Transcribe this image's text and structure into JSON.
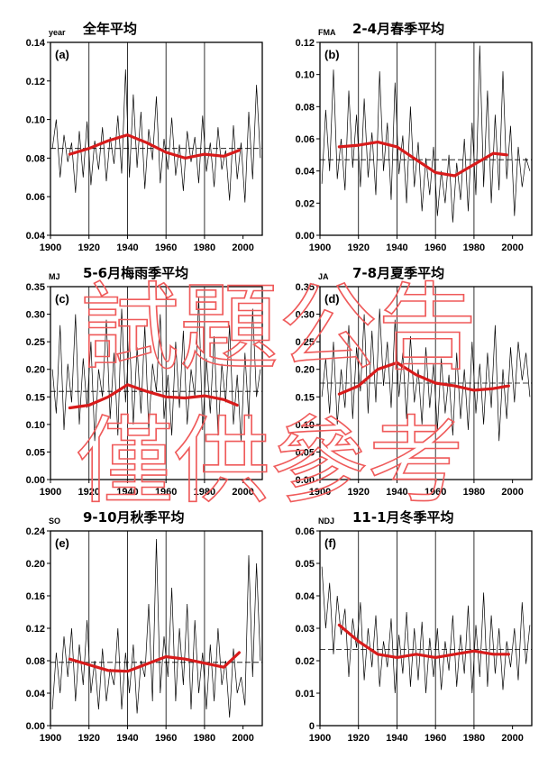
{
  "figure": {
    "watermark": [
      "試題公告",
      "僅供參考"
    ],
    "colors": {
      "trend": "#d81b1b",
      "series": "#000000",
      "watermark": "#ef5a5a"
    }
  },
  "chart_data": [
    {
      "type": "line",
      "label": "(a)",
      "season": "year",
      "title": "全年平均",
      "xlim": [
        1900,
        2010
      ],
      "ylim": [
        0.04,
        0.14
      ],
      "yticks": [
        "0.04",
        "0.06",
        "0.08",
        "0.10",
        "0.12",
        "0.14"
      ],
      "xticks": [
        "1900",
        "1920",
        "1940",
        "1960",
        "1980",
        "2000"
      ],
      "reference_line": 0.085,
      "grid_x": [
        1920,
        1940,
        1960,
        1980
      ],
      "series": [
        {
          "x": [
            1901,
            1903,
            1905,
            1907,
            1909,
            1911,
            1913,
            1915,
            1917,
            1919,
            1921,
            1923,
            1925,
            1927,
            1929,
            1931,
            1933,
            1935,
            1937,
            1939,
            1941,
            1943,
            1945,
            1947,
            1949,
            1951,
            1953,
            1955,
            1957,
            1959,
            1961,
            1963,
            1965,
            1967,
            1969,
            1971,
            1973,
            1975,
            1977,
            1979,
            1981,
            1983,
            1985,
            1987,
            1989,
            1991,
            1993,
            1995,
            1997,
            1999,
            2001,
            2003,
            2005,
            2007,
            2009
          ],
          "values": [
            0.085,
            0.1,
            0.07,
            0.092,
            0.078,
            0.088,
            0.062,
            0.094,
            0.07,
            0.099,
            0.066,
            0.089,
            0.074,
            0.096,
            0.068,
            0.091,
            0.077,
            0.102,
            0.072,
            0.126,
            0.07,
            0.113,
            0.075,
            0.104,
            0.064,
            0.095,
            0.079,
            0.112,
            0.067,
            0.09,
            0.074,
            0.101,
            0.071,
            0.087,
            0.063,
            0.094,
            0.078,
            0.091,
            0.067,
            0.102,
            0.073,
            0.088,
            0.065,
            0.096,
            0.074,
            0.084,
            0.058,
            0.097,
            0.069,
            0.088,
            0.057,
            0.104,
            0.069,
            0.118,
            0.08
          ]
        },
        {
          "x": [
            1910,
            1920,
            1930,
            1940,
            1950,
            1960,
            1970,
            1980,
            1990,
            1998
          ],
          "values": [
            0.082,
            0.085,
            0.089,
            0.092,
            0.088,
            0.083,
            0.08,
            0.082,
            0.081,
            0.084
          ]
        }
      ]
    },
    {
      "type": "line",
      "label": "(b)",
      "season": "FMA",
      "title": "2-4月春季平均",
      "xlim": [
        1900,
        2010
      ],
      "ylim": [
        0.0,
        0.12
      ],
      "yticks": [
        "0.00",
        "0.02",
        "0.04",
        "0.06",
        "0.08",
        "0.10",
        "0.12"
      ],
      "xticks": [
        "1900",
        "1920",
        "1940",
        "1960",
        "1980",
        "2000"
      ],
      "reference_line": 0.047,
      "grid_x": [
        1920,
        1940,
        1960,
        1980
      ],
      "series": [
        {
          "x": [
            1901,
            1903,
            1905,
            1907,
            1909,
            1911,
            1913,
            1915,
            1917,
            1919,
            1921,
            1923,
            1925,
            1927,
            1929,
            1931,
            1933,
            1935,
            1937,
            1939,
            1941,
            1943,
            1945,
            1947,
            1949,
            1951,
            1953,
            1955,
            1957,
            1959,
            1961,
            1963,
            1965,
            1967,
            1969,
            1971,
            1973,
            1975,
            1977,
            1979,
            1981,
            1983,
            1985,
            1987,
            1989,
            1991,
            1993,
            1995,
            1997,
            1999,
            2001,
            2003,
            2005,
            2007,
            2009
          ],
          "values": [
            0.032,
            0.078,
            0.04,
            0.103,
            0.035,
            0.06,
            0.028,
            0.09,
            0.042,
            0.075,
            0.03,
            0.085,
            0.036,
            0.064,
            0.025,
            0.102,
            0.04,
            0.07,
            0.022,
            0.095,
            0.038,
            0.062,
            0.02,
            0.08,
            0.03,
            0.058,
            0.015,
            0.048,
            0.025,
            0.055,
            0.012,
            0.04,
            0.02,
            0.05,
            0.008,
            0.045,
            0.022,
            0.06,
            0.015,
            0.07,
            0.025,
            0.118,
            0.03,
            0.09,
            0.02,
            0.075,
            0.028,
            0.102,
            0.035,
            0.068,
            0.012,
            0.055,
            0.03,
            0.048,
            0.04
          ]
        },
        {
          "x": [
            1910,
            1920,
            1930,
            1940,
            1950,
            1960,
            1970,
            1980,
            1990,
            1997
          ],
          "values": [
            0.055,
            0.056,
            0.058,
            0.055,
            0.047,
            0.039,
            0.037,
            0.044,
            0.051,
            0.05
          ]
        }
      ]
    },
    {
      "type": "line",
      "label": "(c)",
      "season": "MJ",
      "title": "5-6月梅雨季平均",
      "xlim": [
        1900,
        2010
      ],
      "ylim": [
        0.0,
        0.35
      ],
      "yticks": [
        "0.00",
        "0.05",
        "0.10",
        "0.15",
        "0.20",
        "0.25",
        "0.30",
        "0.35"
      ],
      "xticks": [
        "1900",
        "1920",
        "1940",
        "1960",
        "1980",
        "2000"
      ],
      "reference_line": 0.16,
      "grid_x": [
        1920,
        1940,
        1960,
        1980
      ],
      "series": [
        {
          "x": [
            1901,
            1903,
            1905,
            1907,
            1909,
            1911,
            1913,
            1915,
            1917,
            1919,
            1921,
            1923,
            1925,
            1927,
            1929,
            1931,
            1933,
            1935,
            1937,
            1939,
            1941,
            1943,
            1945,
            1947,
            1949,
            1951,
            1953,
            1955,
            1957,
            1959,
            1961,
            1963,
            1965,
            1967,
            1969,
            1971,
            1973,
            1975,
            1977,
            1979,
            1981,
            1983,
            1985,
            1987,
            1989,
            1991,
            1993,
            1995,
            1997,
            1999,
            2001,
            2003,
            2005,
            2007,
            2009
          ],
          "values": [
            0.2,
            0.12,
            0.28,
            0.09,
            0.21,
            0.14,
            0.3,
            0.1,
            0.22,
            0.13,
            0.25,
            0.07,
            0.2,
            0.15,
            0.29,
            0.11,
            0.23,
            0.08,
            0.31,
            0.14,
            0.26,
            0.1,
            0.24,
            0.12,
            0.28,
            0.09,
            0.21,
            0.16,
            0.3,
            0.11,
            0.19,
            0.08,
            0.25,
            0.13,
            0.27,
            0.1,
            0.2,
            0.15,
            0.33,
            0.09,
            0.22,
            0.12,
            0.26,
            0.08,
            0.21,
            0.14,
            0.28,
            0.1,
            0.19,
            0.07,
            0.23,
            0.11,
            0.31,
            0.15,
            0.2
          ]
        },
        {
          "x": [
            1910,
            1920,
            1930,
            1940,
            1950,
            1960,
            1970,
            1980,
            1990,
            1997
          ],
          "values": [
            0.13,
            0.135,
            0.15,
            0.172,
            0.16,
            0.15,
            0.148,
            0.152,
            0.145,
            0.135
          ]
        }
      ]
    },
    {
      "type": "line",
      "label": "(d)",
      "season": "JA",
      "title": "7-8月夏季平均",
      "xlim": [
        1900,
        2010
      ],
      "ylim": [
        0.0,
        0.35
      ],
      "yticks": [
        "0.00",
        "0.05",
        "0.10",
        "0.15",
        "0.20",
        "0.25",
        "0.30",
        "0.35"
      ],
      "xticks": [
        "1900",
        "1920",
        "1940",
        "1960",
        "1980",
        "2000"
      ],
      "reference_line": 0.175,
      "grid_x": [
        1920,
        1940,
        1960,
        1980
      ],
      "series": [
        {
          "x": [
            1901,
            1903,
            1905,
            1907,
            1909,
            1911,
            1913,
            1915,
            1917,
            1919,
            1921,
            1923,
            1925,
            1927,
            1929,
            1931,
            1933,
            1935,
            1937,
            1939,
            1941,
            1943,
            1945,
            1947,
            1949,
            1951,
            1953,
            1955,
            1957,
            1959,
            1961,
            1963,
            1965,
            1967,
            1969,
            1971,
            1973,
            1975,
            1977,
            1979,
            1981,
            1983,
            1985,
            1987,
            1989,
            1991,
            1993,
            1995,
            1997,
            1999,
            2001,
            2003,
            2005,
            2007,
            2009
          ],
          "values": [
            0.15,
            0.22,
            0.12,
            0.25,
            0.1,
            0.2,
            0.13,
            0.28,
            0.11,
            0.24,
            0.16,
            0.3,
            0.12,
            0.27,
            0.14,
            0.31,
            0.17,
            0.25,
            0.13,
            0.29,
            0.15,
            0.23,
            0.11,
            0.26,
            0.14,
            0.2,
            0.1,
            0.24,
            0.13,
            0.21,
            0.09,
            0.22,
            0.12,
            0.19,
            0.08,
            0.23,
            0.11,
            0.2,
            0.09,
            0.25,
            0.12,
            0.21,
            0.1,
            0.23,
            0.13,
            0.28,
            0.07,
            0.2,
            0.11,
            0.24,
            0.14,
            0.25,
            0.18,
            0.23,
            0.15
          ]
        },
        {
          "x": [
            1910,
            1920,
            1930,
            1940,
            1950,
            1960,
            1970,
            1980,
            1990,
            1998
          ],
          "values": [
            0.155,
            0.17,
            0.2,
            0.212,
            0.19,
            0.175,
            0.17,
            0.162,
            0.165,
            0.17
          ]
        }
      ]
    },
    {
      "type": "line",
      "label": "(e)",
      "season": "SO",
      "title": "9-10月秋季平均",
      "xlim": [
        1900,
        2010
      ],
      "ylim": [
        0.0,
        0.24
      ],
      "yticks": [
        "0.00",
        "0.04",
        "0.08",
        "0.12",
        "0.16",
        "0.20",
        "0.24"
      ],
      "xticks": [
        "1900",
        "1920",
        "1940",
        "1960",
        "1980",
        "2000"
      ],
      "reference_line": 0.078,
      "grid_x": [
        1920,
        1940,
        1960,
        1980
      ],
      "series": [
        {
          "x": [
            1901,
            1903,
            1905,
            1907,
            1909,
            1911,
            1913,
            1915,
            1917,
            1919,
            1921,
            1923,
            1925,
            1927,
            1929,
            1931,
            1933,
            1935,
            1937,
            1939,
            1941,
            1943,
            1945,
            1947,
            1949,
            1951,
            1953,
            1955,
            1957,
            1959,
            1961,
            1963,
            1965,
            1967,
            1969,
            1971,
            1973,
            1975,
            1977,
            1979,
            1981,
            1983,
            1985,
            1987,
            1989,
            1991,
            1993,
            1995,
            1997,
            1999,
            2001,
            2003,
            2005,
            2007,
            2009
          ],
          "values": [
            0.02,
            0.09,
            0.04,
            0.11,
            0.06,
            0.12,
            0.03,
            0.1,
            0.05,
            0.13,
            0.04,
            0.08,
            0.02,
            0.095,
            0.03,
            0.07,
            0.05,
            0.12,
            0.02,
            0.09,
            0.04,
            0.1,
            0.015,
            0.08,
            0.06,
            0.15,
            0.03,
            0.23,
            0.04,
            0.11,
            0.06,
            0.17,
            0.03,
            0.12,
            0.05,
            0.15,
            0.02,
            0.13,
            0.04,
            0.09,
            0.02,
            0.1,
            0.03,
            0.12,
            0.05,
            0.08,
            0.01,
            0.095,
            0.04,
            0.06,
            0.025,
            0.21,
            0.06,
            0.2,
            0.08
          ]
        },
        {
          "x": [
            1910,
            1920,
            1930,
            1940,
            1950,
            1960,
            1970,
            1980,
            1990,
            1998
          ],
          "values": [
            0.082,
            0.075,
            0.068,
            0.067,
            0.076,
            0.085,
            0.082,
            0.077,
            0.072,
            0.09
          ]
        }
      ]
    },
    {
      "type": "line",
      "label": "(f)",
      "season": "NDJ",
      "title": "11-1月冬季平均",
      "xlim": [
        1900,
        2010
      ],
      "ylim": [
        0.0,
        0.06
      ],
      "yticks": [
        "0",
        "0.01",
        "0.02",
        "0.03",
        "0.04",
        "0.05",
        "0.06"
      ],
      "xticks": [
        "1900",
        "1920",
        "1940",
        "1960",
        "1980",
        "2000"
      ],
      "reference_line": 0.0235,
      "grid_x": [
        1920,
        1940,
        1960,
        1980
      ],
      "series": [
        {
          "x": [
            1901,
            1903,
            1905,
            1907,
            1909,
            1911,
            1913,
            1915,
            1917,
            1919,
            1921,
            1923,
            1925,
            1927,
            1929,
            1931,
            1933,
            1935,
            1937,
            1939,
            1941,
            1943,
            1945,
            1947,
            1949,
            1951,
            1953,
            1955,
            1957,
            1959,
            1961,
            1963,
            1965,
            1967,
            1969,
            1971,
            1973,
            1975,
            1977,
            1979,
            1981,
            1983,
            1985,
            1987,
            1989,
            1991,
            1993,
            1995,
            1997,
            1999,
            2001,
            2003,
            2005,
            2007,
            2009
          ],
          "values": [
            0.049,
            0.03,
            0.044,
            0.022,
            0.04,
            0.028,
            0.036,
            0.015,
            0.033,
            0.024,
            0.038,
            0.014,
            0.03,
            0.018,
            0.034,
            0.012,
            0.026,
            0.018,
            0.033,
            0.01,
            0.028,
            0.016,
            0.035,
            0.012,
            0.03,
            0.014,
            0.032,
            0.01,
            0.027,
            0.015,
            0.03,
            0.011,
            0.026,
            0.017,
            0.034,
            0.012,
            0.028,
            0.016,
            0.037,
            0.01,
            0.031,
            0.015,
            0.041,
            0.012,
            0.034,
            0.016,
            0.03,
            0.011,
            0.026,
            0.018,
            0.03,
            0.014,
            0.038,
            0.019,
            0.031
          ]
        },
        {
          "x": [
            1910,
            1920,
            1930,
            1940,
            1950,
            1960,
            1970,
            1980,
            1990,
            1998
          ],
          "values": [
            0.031,
            0.026,
            0.022,
            0.021,
            0.022,
            0.021,
            0.022,
            0.023,
            0.022,
            0.022
          ]
        }
      ]
    }
  ]
}
